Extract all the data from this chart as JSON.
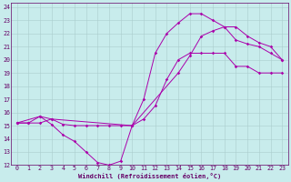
{
  "xlabel": "Windchill (Refroidissement éolien,°C)",
  "bg_color": "#c8ecec",
  "line_color": "#aa00aa",
  "grid_color": "#aacccc",
  "xlim": [
    -0.5,
    23.5
  ],
  "ylim": [
    12,
    24.3
  ],
  "xticks": [
    0,
    1,
    2,
    3,
    4,
    5,
    6,
    7,
    8,
    9,
    10,
    11,
    12,
    13,
    14,
    15,
    16,
    17,
    18,
    19,
    20,
    21,
    22,
    23
  ],
  "yticks": [
    12,
    13,
    14,
    15,
    16,
    17,
    18,
    19,
    20,
    21,
    22,
    23,
    24
  ],
  "line1_x": [
    0,
    1,
    2,
    3,
    4,
    5,
    6,
    7,
    8,
    9,
    10,
    11,
    12,
    13,
    14,
    15,
    16,
    17,
    18,
    19,
    20,
    21,
    22,
    23
  ],
  "line1_y": [
    15.2,
    15.2,
    15.2,
    15.5,
    15.1,
    15.0,
    15.0,
    15.0,
    15.0,
    15.0,
    15.0,
    15.5,
    16.5,
    18.5,
    20.0,
    20.5,
    20.5,
    20.5,
    20.5,
    19.5,
    19.5,
    19.0,
    19.0,
    19.0
  ],
  "line2_x": [
    0,
    1,
    2,
    3,
    4,
    5,
    6,
    7,
    8,
    9,
    10,
    11,
    12,
    13,
    14,
    15,
    16,
    17,
    18,
    19,
    20,
    21,
    22,
    23
  ],
  "line2_y": [
    15.2,
    15.2,
    15.7,
    15.1,
    14.3,
    13.8,
    13.0,
    12.2,
    12.0,
    12.3,
    15.0,
    17.0,
    20.5,
    22.0,
    22.8,
    23.5,
    23.5,
    23.0,
    22.5,
    21.5,
    21.2,
    21.0,
    20.5,
    20.0
  ],
  "line3_x": [
    0,
    2,
    3,
    10,
    14,
    15,
    16,
    17,
    18,
    19,
    20,
    21,
    22,
    23
  ],
  "line3_y": [
    15.2,
    15.7,
    15.5,
    15.0,
    19.0,
    20.3,
    21.8,
    22.2,
    22.5,
    22.5,
    21.8,
    21.3,
    21.0,
    20.0
  ],
  "xlabel_fontsize": 5.0,
  "tick_fontsize": 4.8,
  "marker_size": 1.8,
  "line_width": 0.7
}
